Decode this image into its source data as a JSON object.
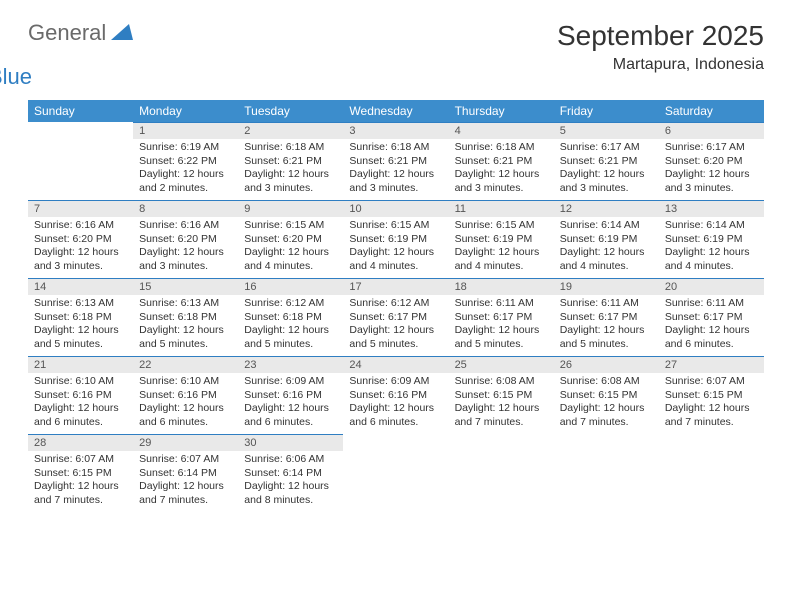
{
  "logo": {
    "part1": "General",
    "part2": "Blue"
  },
  "title": "September 2025",
  "location": "Martapura, Indonesia",
  "colors": {
    "header_bg": "#3c8dcc",
    "header_text": "#ffffff",
    "daynum_bg": "#e9e9e9",
    "daynum_border": "#2f7ec2",
    "text": "#333333",
    "logo_gray": "#6a6a6a",
    "logo_blue": "#2f7ec2",
    "page_bg": "#ffffff"
  },
  "typography": {
    "title_fontsize": 28,
    "location_fontsize": 16,
    "header_fontsize": 12,
    "cell_fontsize": 10.5
  },
  "weekdays": [
    "Sunday",
    "Monday",
    "Tuesday",
    "Wednesday",
    "Thursday",
    "Friday",
    "Saturday"
  ],
  "weeks": [
    [
      null,
      {
        "n": "1",
        "sunrise": "Sunrise: 6:19 AM",
        "sunset": "Sunset: 6:22 PM",
        "day": "Daylight: 12 hours and 2 minutes."
      },
      {
        "n": "2",
        "sunrise": "Sunrise: 6:18 AM",
        "sunset": "Sunset: 6:21 PM",
        "day": "Daylight: 12 hours and 3 minutes."
      },
      {
        "n": "3",
        "sunrise": "Sunrise: 6:18 AM",
        "sunset": "Sunset: 6:21 PM",
        "day": "Daylight: 12 hours and 3 minutes."
      },
      {
        "n": "4",
        "sunrise": "Sunrise: 6:18 AM",
        "sunset": "Sunset: 6:21 PM",
        "day": "Daylight: 12 hours and 3 minutes."
      },
      {
        "n": "5",
        "sunrise": "Sunrise: 6:17 AM",
        "sunset": "Sunset: 6:21 PM",
        "day": "Daylight: 12 hours and 3 minutes."
      },
      {
        "n": "6",
        "sunrise": "Sunrise: 6:17 AM",
        "sunset": "Sunset: 6:20 PM",
        "day": "Daylight: 12 hours and 3 minutes."
      }
    ],
    [
      {
        "n": "7",
        "sunrise": "Sunrise: 6:16 AM",
        "sunset": "Sunset: 6:20 PM",
        "day": "Daylight: 12 hours and 3 minutes."
      },
      {
        "n": "8",
        "sunrise": "Sunrise: 6:16 AM",
        "sunset": "Sunset: 6:20 PM",
        "day": "Daylight: 12 hours and 3 minutes."
      },
      {
        "n": "9",
        "sunrise": "Sunrise: 6:15 AM",
        "sunset": "Sunset: 6:20 PM",
        "day": "Daylight: 12 hours and 4 minutes."
      },
      {
        "n": "10",
        "sunrise": "Sunrise: 6:15 AM",
        "sunset": "Sunset: 6:19 PM",
        "day": "Daylight: 12 hours and 4 minutes."
      },
      {
        "n": "11",
        "sunrise": "Sunrise: 6:15 AM",
        "sunset": "Sunset: 6:19 PM",
        "day": "Daylight: 12 hours and 4 minutes."
      },
      {
        "n": "12",
        "sunrise": "Sunrise: 6:14 AM",
        "sunset": "Sunset: 6:19 PM",
        "day": "Daylight: 12 hours and 4 minutes."
      },
      {
        "n": "13",
        "sunrise": "Sunrise: 6:14 AM",
        "sunset": "Sunset: 6:19 PM",
        "day": "Daylight: 12 hours and 4 minutes."
      }
    ],
    [
      {
        "n": "14",
        "sunrise": "Sunrise: 6:13 AM",
        "sunset": "Sunset: 6:18 PM",
        "day": "Daylight: 12 hours and 5 minutes."
      },
      {
        "n": "15",
        "sunrise": "Sunrise: 6:13 AM",
        "sunset": "Sunset: 6:18 PM",
        "day": "Daylight: 12 hours and 5 minutes."
      },
      {
        "n": "16",
        "sunrise": "Sunrise: 6:12 AM",
        "sunset": "Sunset: 6:18 PM",
        "day": "Daylight: 12 hours and 5 minutes."
      },
      {
        "n": "17",
        "sunrise": "Sunrise: 6:12 AM",
        "sunset": "Sunset: 6:17 PM",
        "day": "Daylight: 12 hours and 5 minutes."
      },
      {
        "n": "18",
        "sunrise": "Sunrise: 6:11 AM",
        "sunset": "Sunset: 6:17 PM",
        "day": "Daylight: 12 hours and 5 minutes."
      },
      {
        "n": "19",
        "sunrise": "Sunrise: 6:11 AM",
        "sunset": "Sunset: 6:17 PM",
        "day": "Daylight: 12 hours and 5 minutes."
      },
      {
        "n": "20",
        "sunrise": "Sunrise: 6:11 AM",
        "sunset": "Sunset: 6:17 PM",
        "day": "Daylight: 12 hours and 6 minutes."
      }
    ],
    [
      {
        "n": "21",
        "sunrise": "Sunrise: 6:10 AM",
        "sunset": "Sunset: 6:16 PM",
        "day": "Daylight: 12 hours and 6 minutes."
      },
      {
        "n": "22",
        "sunrise": "Sunrise: 6:10 AM",
        "sunset": "Sunset: 6:16 PM",
        "day": "Daylight: 12 hours and 6 minutes."
      },
      {
        "n": "23",
        "sunrise": "Sunrise: 6:09 AM",
        "sunset": "Sunset: 6:16 PM",
        "day": "Daylight: 12 hours and 6 minutes."
      },
      {
        "n": "24",
        "sunrise": "Sunrise: 6:09 AM",
        "sunset": "Sunset: 6:16 PM",
        "day": "Daylight: 12 hours and 6 minutes."
      },
      {
        "n": "25",
        "sunrise": "Sunrise: 6:08 AM",
        "sunset": "Sunset: 6:15 PM",
        "day": "Daylight: 12 hours and 7 minutes."
      },
      {
        "n": "26",
        "sunrise": "Sunrise: 6:08 AM",
        "sunset": "Sunset: 6:15 PM",
        "day": "Daylight: 12 hours and 7 minutes."
      },
      {
        "n": "27",
        "sunrise": "Sunrise: 6:07 AM",
        "sunset": "Sunset: 6:15 PM",
        "day": "Daylight: 12 hours and 7 minutes."
      }
    ],
    [
      {
        "n": "28",
        "sunrise": "Sunrise: 6:07 AM",
        "sunset": "Sunset: 6:15 PM",
        "day": "Daylight: 12 hours and 7 minutes."
      },
      {
        "n": "29",
        "sunrise": "Sunrise: 6:07 AM",
        "sunset": "Sunset: 6:14 PM",
        "day": "Daylight: 12 hours and 7 minutes."
      },
      {
        "n": "30",
        "sunrise": "Sunrise: 6:06 AM",
        "sunset": "Sunset: 6:14 PM",
        "day": "Daylight: 12 hours and 8 minutes."
      },
      null,
      null,
      null,
      null
    ]
  ]
}
